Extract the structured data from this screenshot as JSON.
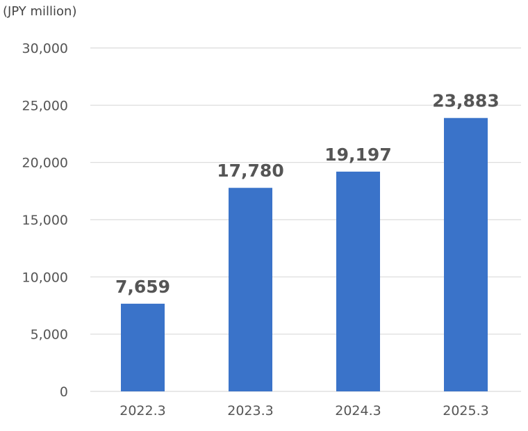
{
  "chart_data": {
    "type": "bar",
    "unit_label": "(JPY million)",
    "categories": [
      "2022.3",
      "2023.3",
      "2024.3",
      "2025.3"
    ],
    "values": [
      7659,
      17780,
      19197,
      23883
    ],
    "data_labels": [
      "7,659",
      "17,780",
      "19,197",
      "23,883"
    ],
    "yticks": [
      0,
      5000,
      10000,
      15000,
      20000,
      25000,
      30000
    ],
    "ytick_labels": [
      "0",
      "5,000",
      "10,000",
      "15,000",
      "20,000",
      "25,000",
      "30,000"
    ],
    "ylim": [
      0,
      30000
    ],
    "grid": true,
    "legend": "none",
    "bar_color": "#3a73c9",
    "grid_color": "#d9d9d9",
    "text_color": "#555555"
  }
}
